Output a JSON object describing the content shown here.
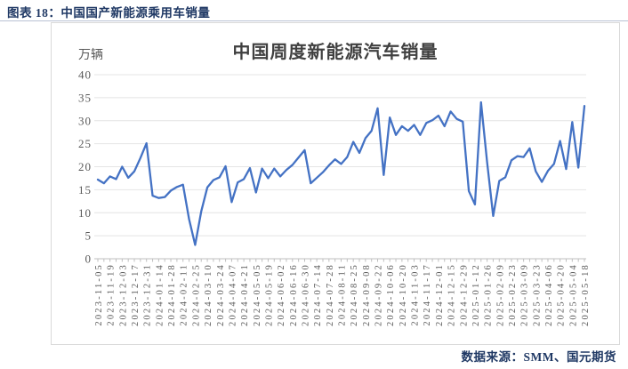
{
  "page": {
    "header": {
      "title": "图表 18：中国国产新能源乘用车销量"
    },
    "footer": {
      "source_note": "数据来源：SMM、国元期货"
    }
  },
  "chart_data": {
    "type": "line",
    "title": "中国周度新能源汽车销量",
    "unit_label": "万辆",
    "xlabel": "",
    "ylabel": "万辆",
    "ylim": [
      0,
      40
    ],
    "yticks": [
      0,
      5,
      10,
      15,
      20,
      25,
      30,
      35,
      40
    ],
    "grid": true,
    "legend": "none",
    "xtick_label_every": 2,
    "line_color": "#4472C4",
    "colors": {
      "grid": "#e4e4e4",
      "axis": "#bfbfbf",
      "tick_label": "#8a8a8a",
      "accent_navy": "#1f3864",
      "box_border": "#d9d9d9"
    },
    "x": [
      "2023-11-05",
      "2023-11-12",
      "2023-11-19",
      "2023-11-26",
      "2023-12-03",
      "2023-12-10",
      "2023-12-17",
      "2023-12-24",
      "2023-12-31",
      "2024-01-07",
      "2024-01-14",
      "2024-01-21",
      "2024-01-28",
      "2024-02-04",
      "2024-02-11",
      "2024-02-18",
      "2024-02-25",
      "2024-03-03",
      "2024-03-10",
      "2024-03-17",
      "2024-03-24",
      "2024-03-31",
      "2024-04-07",
      "2024-04-14",
      "2024-04-21",
      "2024-04-28",
      "2024-05-05",
      "2024-05-12",
      "2024-05-19",
      "2024-05-26",
      "2024-06-02",
      "2024-06-09",
      "2024-06-16",
      "2024-06-23",
      "2024-06-30",
      "2024-07-07",
      "2024-07-14",
      "2024-07-21",
      "2024-07-28",
      "2024-08-04",
      "2024-08-11",
      "2024-08-18",
      "2024-08-25",
      "2024-09-01",
      "2024-09-08",
      "2024-09-15",
      "2024-09-22",
      "2024-09-29",
      "2024-10-06",
      "2024-10-13",
      "2024-10-20",
      "2024-10-27",
      "2024-11-03",
      "2024-11-10",
      "2024-11-17",
      "2024-11-24",
      "2024-12-01",
      "2024-12-08",
      "2024-12-15",
      "2024-12-22",
      "2024-12-29",
      "2025-01-05",
      "2025-01-12",
      "2025-01-19",
      "2025-01-26",
      "2025-02-02",
      "2025-02-09",
      "2025-02-16",
      "2025-02-23",
      "2025-03-02",
      "2025-03-09",
      "2025-03-16",
      "2025-03-23",
      "2025-03-30",
      "2025-04-06",
      "2025-04-13",
      "2025-04-20",
      "2025-04-27",
      "2025-05-04",
      "2025-05-11",
      "2025-05-18"
    ],
    "values": [
      17.2,
      16.4,
      17.9,
      17.3,
      20.0,
      17.6,
      19.0,
      21.9,
      25.1,
      13.7,
      13.2,
      13.4,
      14.8,
      15.6,
      16.1,
      8.6,
      3.0,
      10.3,
      15.5,
      17.1,
      17.7,
      20.1,
      12.3,
      16.6,
      17.3,
      19.7,
      14.4,
      19.6,
      17.5,
      19.6,
      17.9,
      19.3,
      20.4,
      22.0,
      23.6,
      16.4,
      17.6,
      18.8,
      20.3,
      21.6,
      20.6,
      22.1,
      25.4,
      23.0,
      26.2,
      27.8,
      32.7,
      18.2,
      30.7,
      26.9,
      28.8,
      27.8,
      29.1,
      26.9,
      29.5,
      30.1,
      31.1,
      28.8,
      32.0,
      30.4,
      29.8,
      14.7,
      11.8,
      34.0,
      21.0,
      9.3,
      16.9,
      17.7,
      21.4,
      22.3,
      22.1,
      24.0,
      19.0,
      16.7,
      19.1,
      20.6,
      25.6,
      19.5,
      29.7,
      19.8,
      33.2
    ]
  }
}
